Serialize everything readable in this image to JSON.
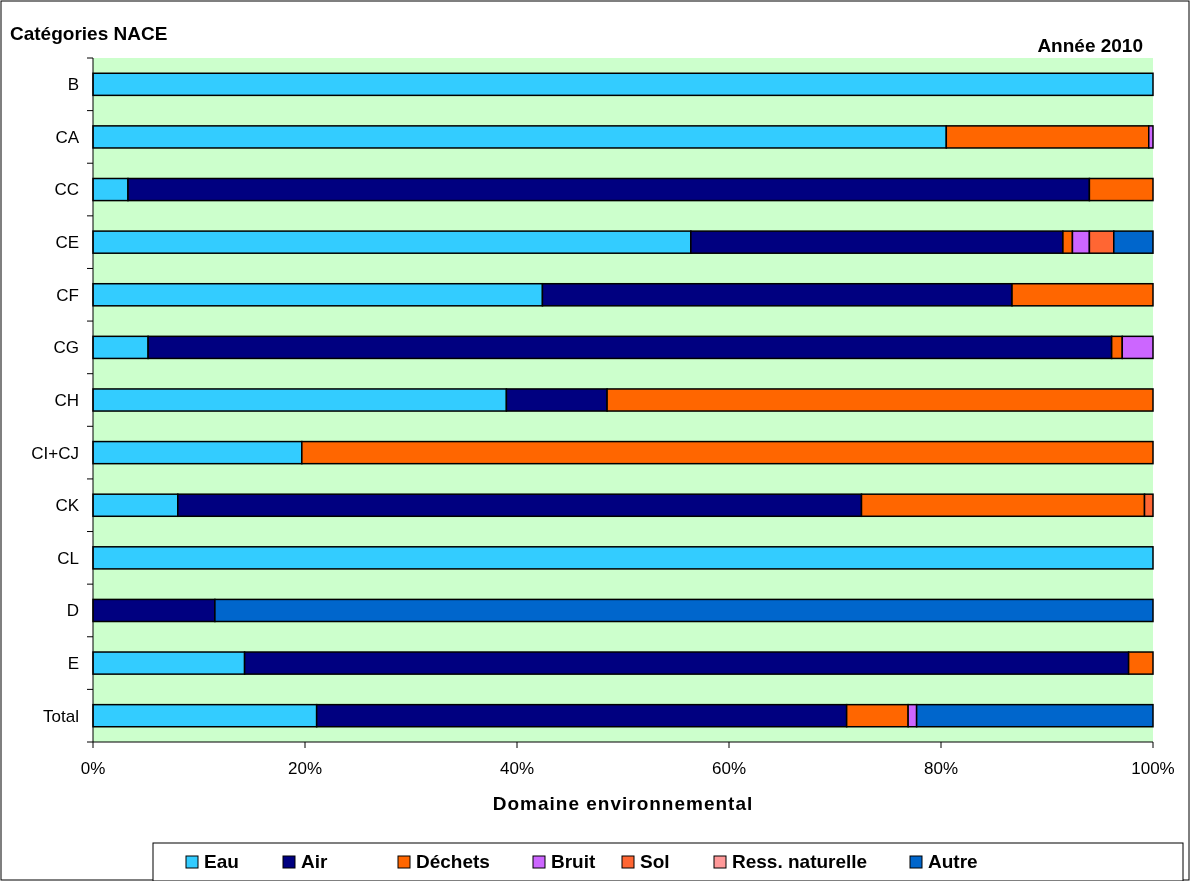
{
  "chart_data": {
    "type": "bar",
    "orientation": "horizontal",
    "stacked": true,
    "title": "Année 2010",
    "ylabel": "Catégories NACE",
    "xlabel": "Domaine environnemental",
    "categories": [
      "B",
      "CA",
      "CC",
      "CE",
      "CF",
      "CG",
      "CH",
      "CI+CJ",
      "CK",
      "CL",
      "D",
      "E",
      "Total"
    ],
    "series": [
      {
        "name": "Eau",
        "color": "#33ccff",
        "values": [
          100,
          80.5,
          3.3,
          56.4,
          42.4,
          5.2,
          39.0,
          19.7,
          8.0,
          100,
          0,
          14.3,
          21.1
        ]
      },
      {
        "name": "Air",
        "color": "#000080",
        "values": [
          0,
          0,
          90.7,
          35.1,
          44.3,
          90.9,
          9.5,
          0,
          64.5,
          0,
          11.5,
          83.4,
          50.0
        ]
      },
      {
        "name": "Déchets",
        "color": "#ff6600",
        "values": [
          0,
          19.1,
          6.0,
          0.9,
          13.3,
          1.0,
          51.5,
          80.3,
          26.7,
          0,
          0,
          2.3,
          5.8
        ]
      },
      {
        "name": "Bruit",
        "color": "#cc66ff",
        "values": [
          0,
          0.4,
          0,
          1.6,
          0,
          2.9,
          0,
          0,
          0,
          0,
          0,
          0,
          0.8
        ]
      },
      {
        "name": "Sol",
        "color": "#ff6633",
        "values": [
          0,
          0,
          0,
          2.3,
          0,
          0,
          0,
          0,
          0.8,
          0,
          0,
          0,
          0
        ]
      },
      {
        "name": "Ress. naturelle",
        "color": "#ff9999",
        "values": [
          0,
          0,
          0,
          0,
          0,
          0,
          0,
          0,
          0,
          0,
          0,
          0,
          0
        ]
      },
      {
        "name": "Autre",
        "color": "#0066cc",
        "values": [
          0,
          0,
          0,
          3.7,
          0,
          0,
          0,
          0,
          0,
          0,
          88.5,
          0,
          22.3
        ]
      }
    ],
    "xlim": [
      0,
      100
    ],
    "xticks": [
      {
        "value": 0,
        "label": "0%"
      },
      {
        "value": 20,
        "label": "20%"
      },
      {
        "value": 40,
        "label": "40%"
      },
      {
        "value": 60,
        "label": "60%"
      },
      {
        "value": 80,
        "label": "80%"
      },
      {
        "value": 100,
        "label": "100%"
      }
    ],
    "grid": false,
    "legend": "bottom"
  }
}
